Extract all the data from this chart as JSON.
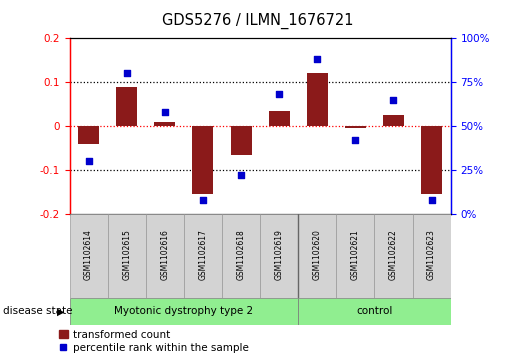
{
  "title": "GDS5276 / ILMN_1676721",
  "samples": [
    "GSM1102614",
    "GSM1102615",
    "GSM1102616",
    "GSM1102617",
    "GSM1102618",
    "GSM1102619",
    "GSM1102620",
    "GSM1102621",
    "GSM1102622",
    "GSM1102623"
  ],
  "transformed_count": [
    -0.04,
    0.09,
    0.01,
    -0.155,
    -0.065,
    0.035,
    0.12,
    -0.005,
    0.025,
    -0.155
  ],
  "percentile_rank": [
    30,
    80,
    58,
    8,
    22,
    68,
    88,
    42,
    65,
    8
  ],
  "disease_groups": [
    {
      "label": "Myotonic dystrophy type 2",
      "n_samples": 6,
      "color": "#90EE90"
    },
    {
      "label": "control",
      "n_samples": 4,
      "color": "#90EE90"
    }
  ],
  "ylim_left": [
    -0.2,
    0.2
  ],
  "ylim_right": [
    0,
    100
  ],
  "yticks_left": [
    -0.2,
    -0.1,
    0.0,
    0.1,
    0.2
  ],
  "yticks_right": [
    0,
    25,
    50,
    75,
    100
  ],
  "bar_color": "#8B1A1A",
  "dot_color": "#0000CD",
  "sample_box_color": "#D3D3D3",
  "legend_bar_label": "transformed count",
  "legend_dot_label": "percentile rank within the sample",
  "disease_state_label": "disease state",
  "hline0_color": "red",
  "hline_pm01_color": "black"
}
